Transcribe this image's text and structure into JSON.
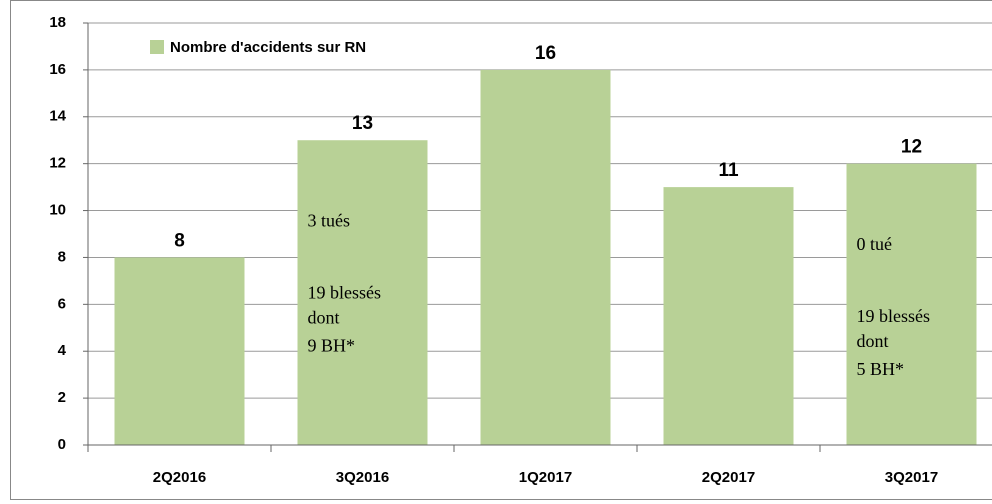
{
  "chart_data": {
    "type": "bar",
    "legend": "Nombre d'accidents sur RN",
    "categories": [
      "2Q2016",
      "3Q2016",
      "1Q2017",
      "2Q2017",
      "3Q2017"
    ],
    "values": [
      8,
      13,
      16,
      11,
      12
    ],
    "color": "#b8d196",
    "ylim": [
      0,
      18
    ],
    "yticks": [
      0,
      2,
      4,
      6,
      8,
      10,
      12,
      14,
      16,
      18
    ],
    "grid": true,
    "annotations": [
      {
        "category": "3Q2016",
        "lines": [
          "3 tués",
          "19 blessés",
          "dont",
          "9 BH*"
        ]
      },
      {
        "category": "3Q2017",
        "lines": [
          "0 tué",
          "19 blessés",
          "dont",
          "5 BH*"
        ]
      }
    ]
  }
}
